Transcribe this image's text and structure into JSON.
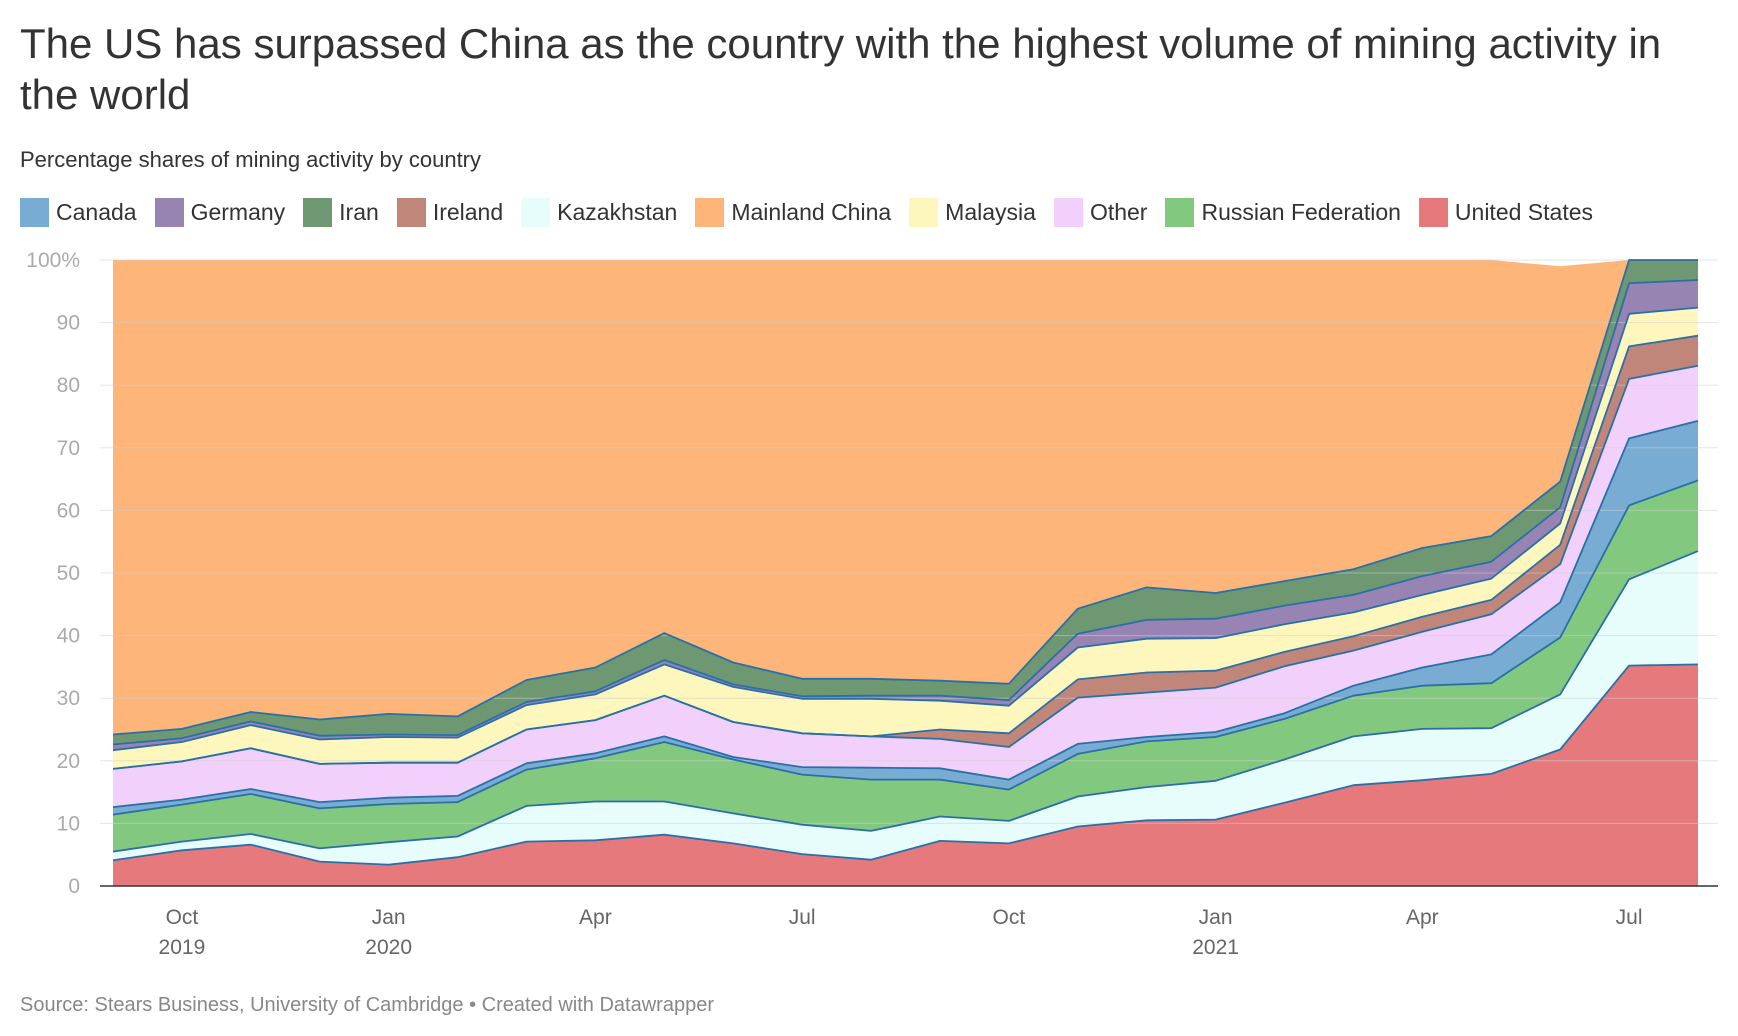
{
  "title": "The US has surpassed China as the country with the highest volume of mining activity in the world",
  "subtitle": "Percentage shares of mining activity by country",
  "footer": {
    "source": "Source: Stears Business, University of Cambridge",
    "separator": " • ",
    "credit": "Created with Datawrapper"
  },
  "chart_data": {
    "type": "area",
    "stacked": true,
    "x": [
      "2019-09",
      "2019-10",
      "2019-11",
      "2019-12",
      "2020-01",
      "2020-02",
      "2020-03",
      "2020-04",
      "2020-05",
      "2020-06",
      "2020-07",
      "2020-08",
      "2020-09",
      "2020-10",
      "2020-11",
      "2020-12",
      "2021-01",
      "2021-02",
      "2021-03",
      "2021-04",
      "2021-05",
      "2021-06",
      "2021-07",
      "2021-08"
    ],
    "x_ticks": [
      {
        "x": "2019-10",
        "label": "Oct",
        "year": "2019"
      },
      {
        "x": "2020-01",
        "label": "Jan",
        "year": "2020"
      },
      {
        "x": "2020-04",
        "label": "Apr",
        "year": ""
      },
      {
        "x": "2020-07",
        "label": "Jul",
        "year": ""
      },
      {
        "x": "2020-10",
        "label": "Oct",
        "year": ""
      },
      {
        "x": "2021-01",
        "label": "Jan",
        "year": "2021"
      },
      {
        "x": "2021-04",
        "label": "Apr",
        "year": ""
      },
      {
        "x": "2021-07",
        "label": "Jul",
        "year": ""
      }
    ],
    "y_ticks": [
      "0",
      "10",
      "20",
      "30",
      "40",
      "50",
      "60",
      "70",
      "80",
      "90",
      "100%"
    ],
    "ylim": [
      0,
      100
    ],
    "grid": true,
    "legend_position": "top-left",
    "series": [
      {
        "name": "United States",
        "color": "#e6797c",
        "values": [
          4.1,
          5.7,
          6.6,
          3.9,
          3.4,
          4.6,
          7.1,
          7.3,
          8.2,
          6.8,
          5.1,
          4.2,
          7.2,
          6.8,
          9.5,
          10.5,
          10.6,
          13.3,
          16.1,
          16.9,
          17.9,
          21.8,
          35.2,
          35.4
        ]
      },
      {
        "name": "Kazakhstan",
        "color": "#e6fdfc",
        "values": [
          1.4,
          1.4,
          1.7,
          2.1,
          3.6,
          3.3,
          5.7,
          6.2,
          5.3,
          4.8,
          4.7,
          4.6,
          3.9,
          3.6,
          4.8,
          5.3,
          6.2,
          6.9,
          7.8,
          8.2,
          7.3,
          8.8,
          13.8,
          18.1
        ]
      },
      {
        "name": "Russian Federation",
        "color": "#82c87f",
        "values": [
          5.9,
          5.9,
          6.4,
          6.4,
          6.1,
          5.5,
          5.8,
          6.9,
          9.5,
          8.6,
          8.0,
          8.2,
          5.9,
          5.0,
          6.8,
          7.3,
          7.0,
          6.5,
          6.5,
          6.9,
          7.2,
          9.1,
          11.8,
          11.3
        ]
      },
      {
        "name": "Canada",
        "color": "#78acd3",
        "values": [
          1.2,
          0.8,
          0.8,
          1.0,
          1.0,
          1.0,
          1.0,
          0.8,
          0.9,
          0.4,
          1.2,
          1.9,
          1.8,
          1.6,
          1.6,
          0.7,
          0.8,
          0.9,
          1.6,
          2.9,
          4.6,
          5.6,
          10.7,
          9.5
        ]
      },
      {
        "name": "Other",
        "color": "#f1d1fb",
        "values": [
          6.1,
          6.1,
          6.5,
          6.1,
          5.6,
          5.3,
          5.4,
          5.3,
          6.5,
          5.6,
          5.4,
          5.0,
          4.7,
          5.2,
          7.4,
          7.1,
          7.1,
          7.5,
          5.6,
          5.7,
          6.4,
          6.1,
          9.5,
          8.8
        ]
      },
      {
        "name": "Ireland",
        "color": "#c0867a",
        "values": [
          0,
          0,
          0,
          0,
          0,
          0,
          0,
          0,
          0,
          0,
          0,
          0,
          1.5,
          2.2,
          2.9,
          3.2,
          2.7,
          2.3,
          2.3,
          2.4,
          2.3,
          3.1,
          5.2,
          4.8
        ]
      },
      {
        "name": "Malaysia",
        "color": "#fdf7bd",
        "values": [
          3.0,
          3.1,
          3.7,
          3.9,
          4.1,
          4.0,
          3.9,
          4.1,
          5.0,
          5.6,
          5.5,
          6.0,
          4.6,
          4.4,
          5.1,
          5.4,
          5.2,
          4.4,
          3.8,
          3.5,
          3.4,
          3.4,
          5.2,
          4.5
        ]
      },
      {
        "name": "Germany",
        "color": "#9884b3",
        "values": [
          0.9,
          0.6,
          0.6,
          0.6,
          0.4,
          0.4,
          0.5,
          0.5,
          0.7,
          0.4,
          0.4,
          0.5,
          0.8,
          0.9,
          2.2,
          3.0,
          3.1,
          3.0,
          2.8,
          3.0,
          2.7,
          2.6,
          4.9,
          4.4
        ]
      },
      {
        "name": "Iran",
        "color": "#6d9872",
        "values": [
          1.6,
          1.5,
          1.5,
          2.6,
          3.3,
          3.0,
          3.5,
          3.8,
          4.3,
          3.5,
          2.8,
          2.7,
          2.4,
          2.6,
          4.0,
          5.2,
          4.1,
          3.9,
          4.1,
          4.5,
          4.1,
          4.1,
          3.7,
          3.2
        ]
      },
      {
        "name": "Mainland China",
        "color": "#fdb57a",
        "values": [
          75.8,
          75.0,
          72.3,
          73.4,
          72.5,
          72.9,
          67.1,
          65.1,
          59.6,
          64.3,
          66.9,
          66.9,
          67.2,
          67.7,
          55.7,
          53.3,
          53.2,
          51.3,
          49.4,
          46.0,
          44.1,
          34.4,
          0.0,
          0.0
        ]
      }
    ],
    "legend_order": [
      "Canada",
      "Germany",
      "Iran",
      "Ireland",
      "Kazakhstan",
      "Mainland China",
      "Malaysia",
      "Other",
      "Russian Federation",
      "United States"
    ],
    "line_color": "#2a6fa8",
    "gridline_color": "#e2e2e2",
    "axis_color": "#333333"
  }
}
